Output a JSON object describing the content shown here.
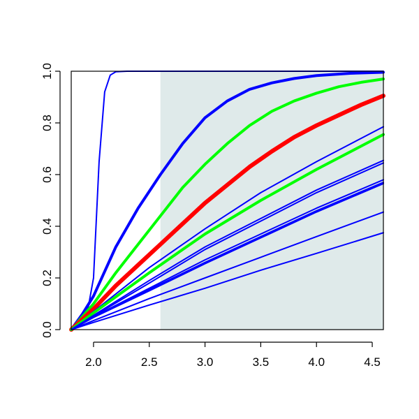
{
  "chart_data": {
    "type": "line",
    "title": "",
    "xlabel": "",
    "ylabel": "",
    "xlim": [
      1.8,
      4.6
    ],
    "ylim": [
      0.0,
      1.0
    ],
    "grid": false,
    "legend": "none",
    "x_ticks": [
      2.0,
      2.5,
      3.0,
      3.5,
      4.0,
      4.5
    ],
    "x_tick_labels": [
      "2.0",
      "2.5",
      "3.0",
      "3.5",
      "4.0",
      "4.5"
    ],
    "y_ticks": [
      0.0,
      0.2,
      0.4,
      0.6,
      0.8,
      1.0
    ],
    "y_tick_labels": [
      "0.0",
      "0.2",
      "0.4",
      "0.6",
      "0.8",
      "1.0"
    ],
    "shaded_region": {
      "x": [
        2.6,
        4.6
      ],
      "y": [
        0.0,
        1.0
      ],
      "color": "#dfeaea"
    },
    "series": [
      {
        "color": "#0000ff",
        "weight": "thin",
        "x": [
          1.8,
          1.9,
          1.95,
          2.0,
          2.05,
          2.1,
          2.15,
          2.2,
          2.3,
          2.4,
          4.6
        ],
        "y": [
          0.0,
          0.04,
          0.08,
          0.2,
          0.65,
          0.92,
          0.985,
          0.998,
          1.0,
          1.0,
          1.0
        ]
      },
      {
        "color": "#0000ff",
        "weight": "thick",
        "x": [
          1.8,
          1.9,
          2.0,
          2.2,
          2.4,
          2.6,
          2.8,
          3.0,
          3.2,
          3.4,
          3.6,
          3.8,
          4.0,
          4.3,
          4.6
        ],
        "y": [
          0.0,
          0.06,
          0.13,
          0.32,
          0.47,
          0.6,
          0.72,
          0.82,
          0.885,
          0.93,
          0.955,
          0.972,
          0.983,
          0.992,
          0.996
        ]
      },
      {
        "color": "#00ff00",
        "weight": "thick",
        "x": [
          1.8,
          2.0,
          2.2,
          2.4,
          2.6,
          2.8,
          3.0,
          3.2,
          3.4,
          3.6,
          3.8,
          4.0,
          4.2,
          4.4,
          4.6
        ],
        "y": [
          0.0,
          0.1,
          0.22,
          0.33,
          0.44,
          0.55,
          0.64,
          0.72,
          0.79,
          0.845,
          0.885,
          0.915,
          0.94,
          0.957,
          0.97
        ]
      },
      {
        "color": "#ff0000",
        "weight": "thickest",
        "x": [
          1.8,
          2.0,
          2.2,
          2.4,
          2.6,
          2.8,
          3.0,
          3.2,
          3.4,
          3.6,
          3.8,
          4.0,
          4.2,
          4.4,
          4.6
        ],
        "y": [
          0.0,
          0.08,
          0.17,
          0.25,
          0.33,
          0.41,
          0.49,
          0.56,
          0.63,
          0.69,
          0.745,
          0.79,
          0.83,
          0.87,
          0.905
        ]
      },
      {
        "color": "#0000ff",
        "weight": "thin",
        "x": [
          1.8,
          2.0,
          2.5,
          3.0,
          3.5,
          4.0,
          4.6
        ],
        "y": [
          0.0,
          0.07,
          0.24,
          0.39,
          0.53,
          0.65,
          0.785
        ]
      },
      {
        "color": "#00ff00",
        "weight": "thick",
        "x": [
          1.8,
          2.0,
          2.5,
          3.0,
          3.5,
          4.0,
          4.6
        ],
        "y": [
          0.0,
          0.065,
          0.22,
          0.37,
          0.5,
          0.62,
          0.755
        ]
      },
      {
        "color": "#0000ff",
        "weight": "thin",
        "x": [
          1.8,
          2.0,
          2.5,
          3.0,
          3.5,
          4.0,
          4.6
        ],
        "y": [
          0.0,
          0.055,
          0.19,
          0.32,
          0.43,
          0.54,
          0.655
        ]
      },
      {
        "color": "#0000ff",
        "weight": "thin",
        "x": [
          1.8,
          2.0,
          2.5,
          3.0,
          3.5,
          4.0,
          4.6
        ],
        "y": [
          0.0,
          0.052,
          0.18,
          0.31,
          0.42,
          0.53,
          0.645
        ]
      },
      {
        "color": "#0000ff",
        "weight": "thin",
        "x": [
          1.8,
          2.0,
          2.5,
          3.0,
          3.5,
          4.0,
          4.6
        ],
        "y": [
          0.0,
          0.05,
          0.16,
          0.27,
          0.37,
          0.47,
          0.58
        ]
      },
      {
        "color": "#0000ff",
        "weight": "thin",
        "x": [
          1.8,
          2.0,
          2.5,
          3.0,
          3.5,
          4.0,
          4.6
        ],
        "y": [
          0.0,
          0.048,
          0.155,
          0.26,
          0.36,
          0.46,
          0.57
        ]
      },
      {
        "color": "#0000ff",
        "weight": "thin",
        "x": [
          1.8,
          2.0,
          2.5,
          3.0,
          3.5,
          4.0,
          4.6
        ],
        "y": [
          0.0,
          0.047,
          0.15,
          0.255,
          0.355,
          0.455,
          0.565
        ]
      },
      {
        "color": "#0000ff",
        "weight": "thin",
        "x": [
          1.8,
          2.0,
          2.5,
          3.0,
          3.5,
          4.0,
          4.6
        ],
        "y": [
          0.0,
          0.035,
          0.12,
          0.2,
          0.28,
          0.36,
          0.455
        ]
      },
      {
        "color": "#0000ff",
        "weight": "thin",
        "x": [
          1.8,
          2.0,
          2.5,
          3.0,
          3.5,
          4.0,
          4.6
        ],
        "y": [
          0.0,
          0.028,
          0.095,
          0.16,
          0.23,
          0.295,
          0.375
        ]
      }
    ]
  }
}
